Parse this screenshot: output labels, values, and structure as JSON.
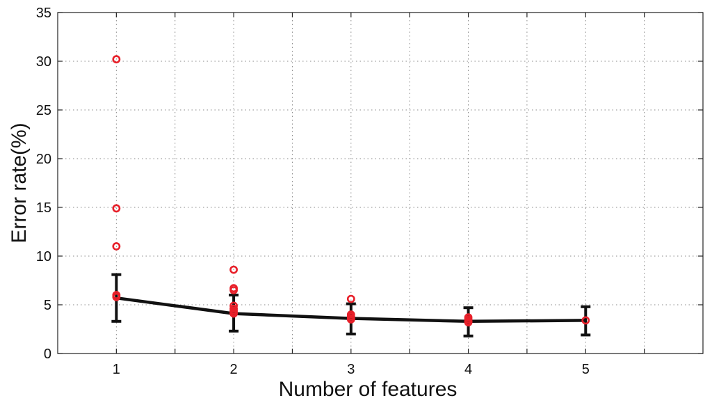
{
  "chart_data": {
    "type": "line",
    "xlabel": "Number of features",
    "ylabel": "Error rate(%)",
    "xlim": [
      0.5,
      6.0
    ],
    "ylim": [
      0,
      35
    ],
    "xticks": [
      1,
      2,
      3,
      4,
      5
    ],
    "yticks": [
      0,
      5,
      10,
      15,
      20,
      25,
      30,
      35
    ],
    "grid": true,
    "series": [
      {
        "kind": "mean-line-with-error-bars",
        "color": "#111111",
        "x": [
          1,
          2,
          3,
          4,
          5
        ],
        "y": [
          5.7,
          4.1,
          3.6,
          3.3,
          3.4
        ],
        "err_low": [
          3.3,
          2.3,
          2.0,
          1.8,
          1.9
        ],
        "err_high": [
          8.1,
          6.0,
          5.1,
          4.7,
          4.8
        ]
      },
      {
        "kind": "points",
        "color": "#e8202a",
        "marker": "circle-open",
        "points": [
          [
            1,
            30.2
          ],
          [
            1,
            14.9
          ],
          [
            1,
            11.0
          ],
          [
            1,
            6.0
          ],
          [
            1,
            5.8
          ],
          [
            2,
            8.6
          ],
          [
            2,
            6.7
          ],
          [
            2,
            6.5
          ],
          [
            2,
            4.9
          ],
          [
            2,
            4.6
          ],
          [
            2,
            4.4
          ],
          [
            2,
            4.2
          ],
          [
            2,
            4.1
          ],
          [
            3,
            5.6
          ],
          [
            3,
            4.0
          ],
          [
            3,
            3.8
          ],
          [
            3,
            3.6
          ],
          [
            3,
            3.5
          ],
          [
            4,
            3.7
          ],
          [
            4,
            3.5
          ],
          [
            4,
            3.3
          ],
          [
            4,
            3.2
          ],
          [
            5,
            3.4
          ]
        ]
      }
    ]
  }
}
